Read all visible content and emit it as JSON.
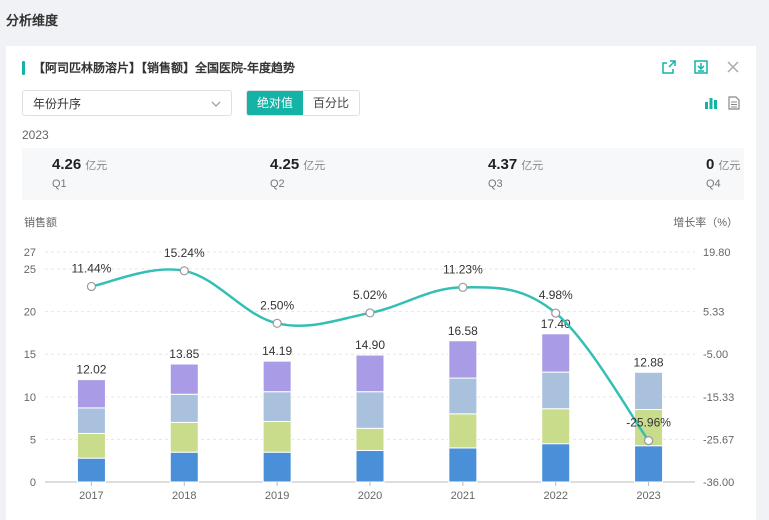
{
  "section_title": "分析维度",
  "card": {
    "title": "【阿司匹林肠溶片】【销售额】全国医院-年度趋势",
    "sort_select": "年份升序",
    "seg_absolute": "绝对值",
    "seg_percent": "百分比",
    "year": "2023",
    "kpis": [
      {
        "value": "4.26",
        "unit": "亿元",
        "label": "Q1"
      },
      {
        "value": "4.25",
        "unit": "亿元",
        "label": "Q2"
      },
      {
        "value": "4.37",
        "unit": "亿元",
        "label": "Q3"
      },
      {
        "value": "0",
        "unit": "亿元",
        "label": "Q4"
      }
    ]
  },
  "colors": {
    "accent": "#14b3a6",
    "q1": "#4a90d9",
    "q2": "#c8dc8c",
    "q3": "#a9c1dc",
    "q4": "#a99be6",
    "line": "#34bfb4"
  },
  "chart_data": {
    "type": "bar",
    "stacked": true,
    "categories": [
      "2017",
      "2018",
      "2019",
      "2020",
      "2021",
      "2022",
      "2023"
    ],
    "series": [
      {
        "name": "Q1",
        "values": [
          2.8,
          3.5,
          3.5,
          3.7,
          4.0,
          4.5,
          4.26
        ]
      },
      {
        "name": "Q2",
        "values": [
          2.9,
          3.5,
          3.6,
          2.6,
          4.0,
          4.1,
          4.25
        ]
      },
      {
        "name": "Q3",
        "values": [
          3.0,
          3.3,
          3.5,
          4.3,
          4.2,
          4.3,
          4.37
        ]
      },
      {
        "name": "Q4",
        "values": [
          3.32,
          3.55,
          3.59,
          4.3,
          4.38,
          4.5,
          0
        ]
      }
    ],
    "totals": [
      "12.02",
      "13.85",
      "14.19",
      "14.90",
      "16.58",
      "17.40",
      "12.88"
    ],
    "growth": {
      "values": [
        11.44,
        15.24,
        2.5,
        5.02,
        11.23,
        4.98,
        -25.96
      ],
      "labels": [
        "11.44%",
        "15.24%",
        "2.50%",
        "5.02%",
        "11.23%",
        "4.98%",
        "-25.96%"
      ]
    },
    "ylabel": "销售额",
    "y2label": "增长率（%）",
    "ylim": [
      0,
      27
    ],
    "yticks": [
      "0",
      "5",
      "10",
      "15",
      "20",
      "25",
      "27"
    ],
    "y2lim": [
      -36,
      19.8
    ],
    "y2ticks": [
      "-36.00",
      "-25.67",
      "-15.33",
      "-5.00",
      "5.33",
      "19.80"
    ]
  }
}
